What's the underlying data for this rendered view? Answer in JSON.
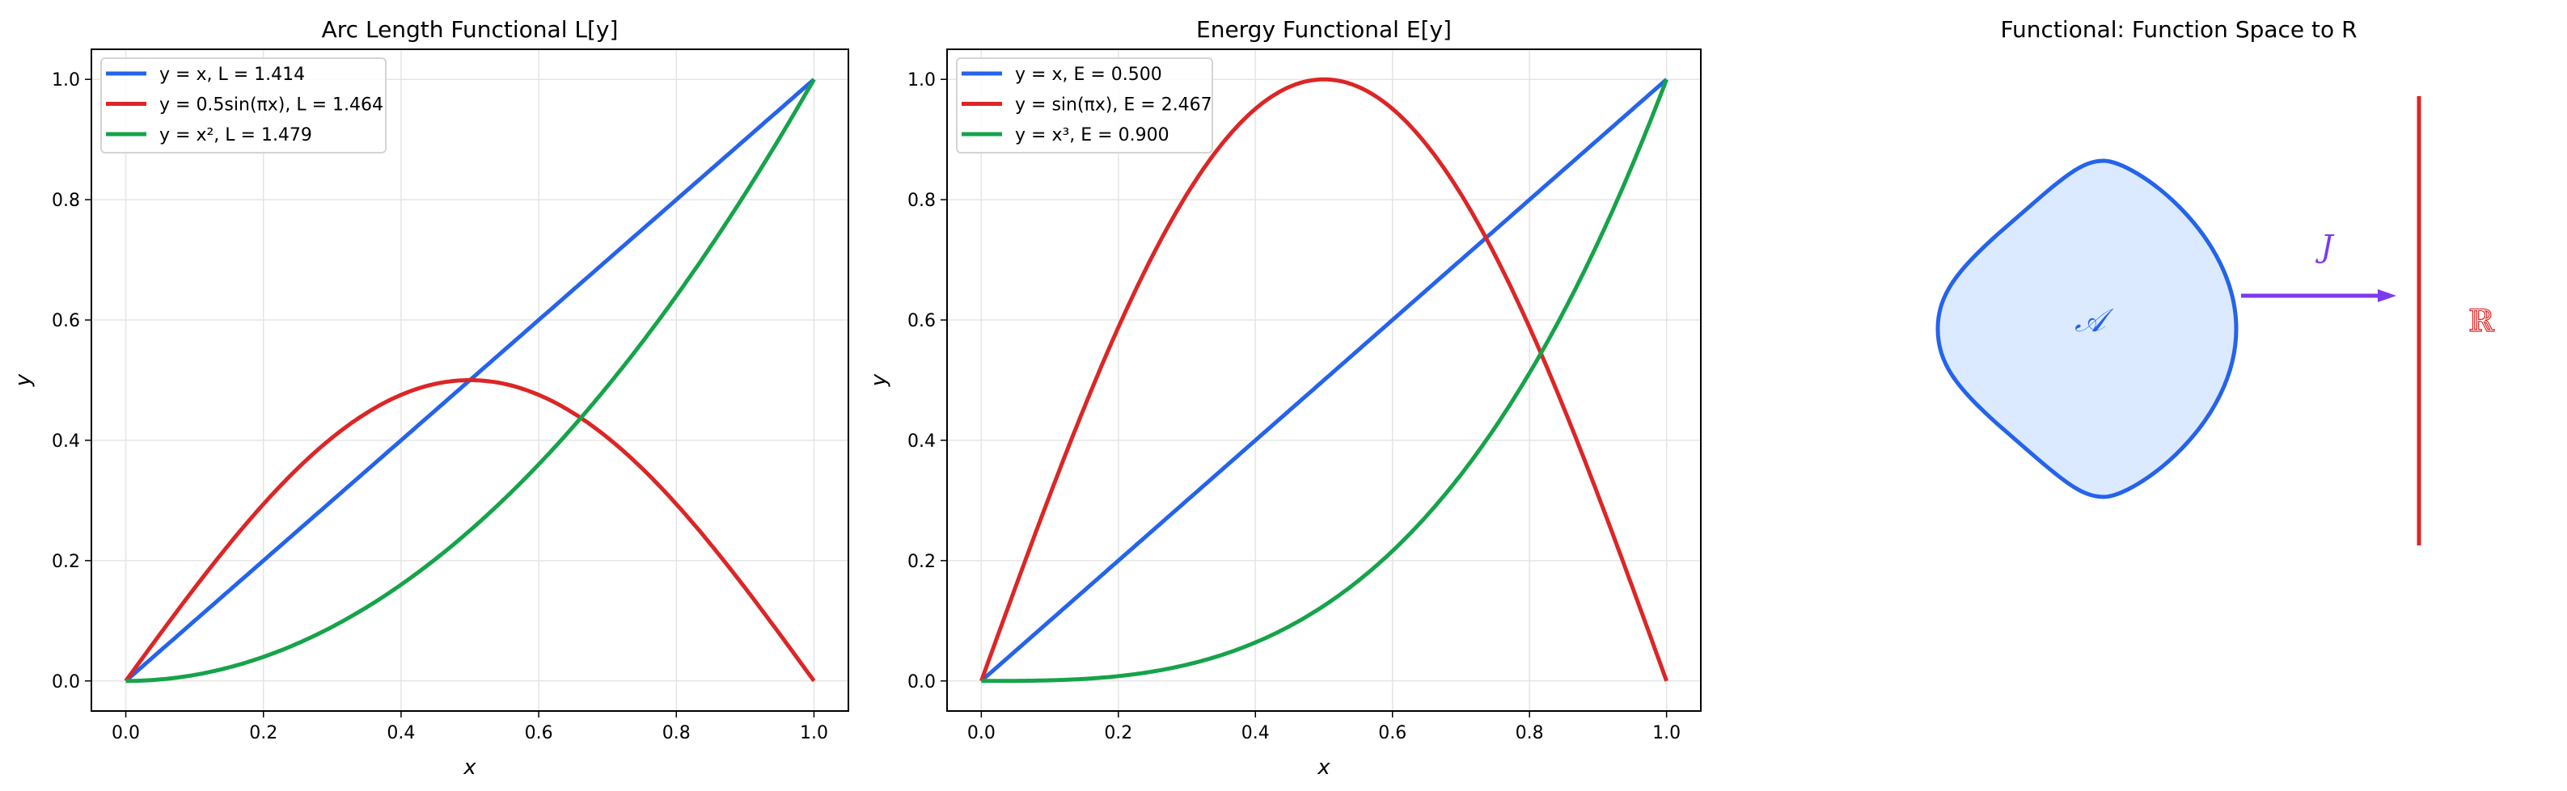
{
  "colors": {
    "blue": "#2563eb",
    "red": "#dc2626",
    "green": "#16a34a",
    "purple": "#7c3aed",
    "fill": "#dbeafe"
  },
  "chart_data": [
    {
      "type": "line",
      "title": "Arc Length Functional L[y]",
      "xlabel": "x",
      "ylabel": "y",
      "xlim": [
        -0.05,
        1.05
      ],
      "ylim": [
        -0.05,
        1.05
      ],
      "xticks": [
        "0.0",
        "0.2",
        "0.4",
        "0.6",
        "0.8",
        "1.0"
      ],
      "yticks": [
        "0.0",
        "0.2",
        "0.4",
        "0.6",
        "0.8",
        "1.0"
      ],
      "grid": true,
      "legend_position": "top-left",
      "series": [
        {
          "name": "y = x, L = 1.414",
          "function": "x",
          "color": "#2563eb"
        },
        {
          "name": "y = 0.5sin(πx), L = 1.464",
          "function": "0.5*sin(pi*x)",
          "color": "#dc2626"
        },
        {
          "name": "y = x², L = 1.479",
          "function": "x^2",
          "color": "#16a34a"
        }
      ]
    },
    {
      "type": "line",
      "title": "Energy Functional E[y]",
      "xlabel": "x",
      "ylabel": "y",
      "xlim": [
        -0.05,
        1.05
      ],
      "ylim": [
        -0.05,
        1.05
      ],
      "xticks": [
        "0.0",
        "0.2",
        "0.4",
        "0.6",
        "0.8",
        "1.0"
      ],
      "yticks": [
        "0.0",
        "0.2",
        "0.4",
        "0.6",
        "0.8",
        "1.0"
      ],
      "grid": true,
      "legend_position": "top-left",
      "series": [
        {
          "name": "y = x, E = 0.500",
          "function": "x",
          "color": "#2563eb"
        },
        {
          "name": "y = sin(πx), E = 2.467",
          "function": "sin(pi*x)",
          "color": "#dc2626"
        },
        {
          "name": "y = x³, E = 0.900",
          "function": "x^3",
          "color": "#16a34a"
        }
      ]
    }
  ],
  "diagram": {
    "title": "Functional: Function Space to R",
    "set_label": "𝒜",
    "map_label": "J",
    "target_label": "ℝ"
  }
}
